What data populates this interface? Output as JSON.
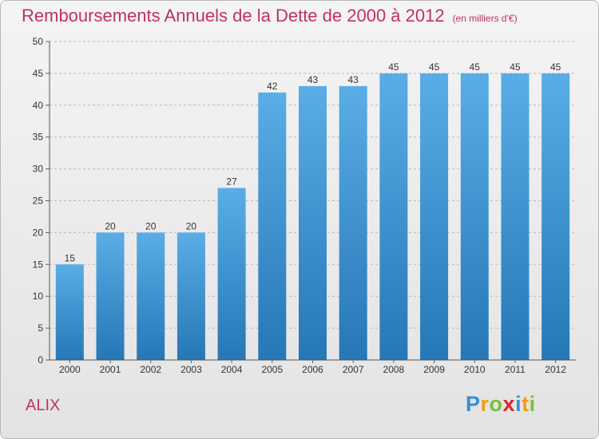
{
  "header": {
    "title": "Remboursements Annuels de la Dette de 2000 à 2012",
    "subtitle": "(en milliers d'€)"
  },
  "location": {
    "name": "ALIX"
  },
  "logo": {
    "text": "Proxiti",
    "letters": [
      {
        "ch": "P",
        "color": "#3a8fd0"
      },
      {
        "ch": "r",
        "color": "#f39c12"
      },
      {
        "ch": "o",
        "color": "#7bbf3a"
      },
      {
        "ch": "x",
        "color": "#d9262b"
      },
      {
        "ch": "i",
        "color": "#3a8fd0"
      },
      {
        "ch": "t",
        "color": "#f39c12"
      },
      {
        "ch": "i",
        "color": "#7bbf3a"
      }
    ]
  },
  "colors": {
    "title": "#c0306a",
    "bar_top": "#5aade6",
    "bar_bottom": "#2677b6",
    "grid": "#b9b9b9",
    "text": "#333333"
  },
  "chart_data": {
    "type": "bar",
    "categories": [
      "2000",
      "2001",
      "2002",
      "2003",
      "2004",
      "2005",
      "2006",
      "2007",
      "2008",
      "2009",
      "2010",
      "2011",
      "2012"
    ],
    "values": [
      15,
      20,
      20,
      20,
      27,
      42,
      43,
      43,
      45,
      45,
      45,
      45,
      45
    ],
    "ylim": [
      0,
      50
    ],
    "yticks": [
      0,
      5,
      10,
      15,
      20,
      25,
      30,
      35,
      40,
      45,
      50
    ],
    "grid": "horizontal dashed",
    "data_labels": true
  }
}
